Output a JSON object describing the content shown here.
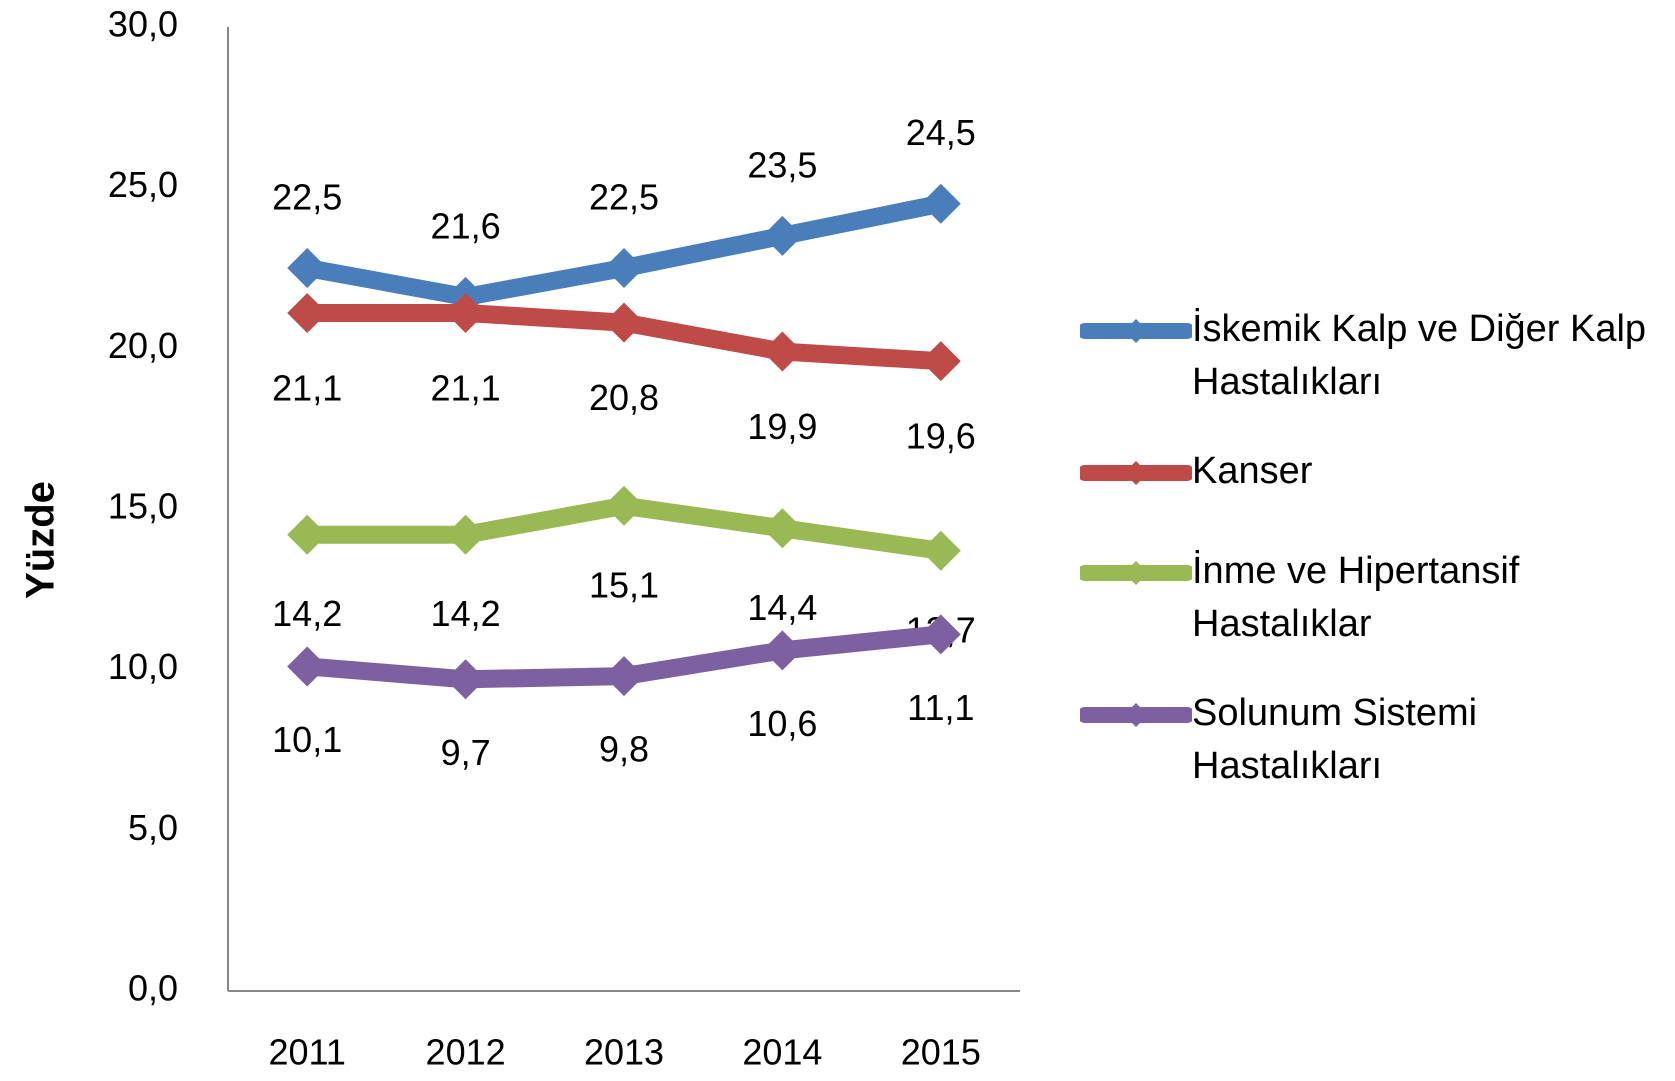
{
  "chart_data": {
    "type": "line",
    "ylabel": "Yüzde",
    "categories": [
      "2011",
      "2012",
      "2013",
      "2014",
      "2015"
    ],
    "series": [
      {
        "name": "İskemik Kalp ve Diğer Kalp Hastalıkları",
        "color": "#4a7ebb",
        "values": [
          22.5,
          21.6,
          22.5,
          23.5,
          24.5
        ],
        "value_labels": [
          "22,5",
          "21,6",
          "22,5",
          "23,5",
          "24,5"
        ]
      },
      {
        "name": "Kanser",
        "color": "#be4b48",
        "values": [
          21.1,
          21.1,
          20.8,
          19.9,
          19.6
        ],
        "value_labels": [
          "21,1",
          "21,1",
          "20,8",
          "19,9",
          "19,6"
        ]
      },
      {
        "name": "İnme ve Hipertansif Hastalıklar",
        "color": "#98b954",
        "values": [
          14.2,
          14.2,
          15.1,
          14.4,
          13.7
        ],
        "value_labels": [
          "14,2",
          "14,2",
          "15,1",
          "14,4",
          "13,7"
        ]
      },
      {
        "name": "Solunum Sistemi Hastalıkları",
        "color": "#7d60a0",
        "values": [
          10.1,
          9.7,
          9.8,
          10.6,
          11.1
        ],
        "value_labels": [
          "10,1",
          "9,7",
          "9,8",
          "10,6",
          "11,1"
        ]
      }
    ],
    "ylim": [
      0,
      30
    ],
    "yticks": [
      {
        "value": 0,
        "label": "0,0"
      },
      {
        "value": 5,
        "label": "5,0"
      },
      {
        "value": 10,
        "label": "10,0"
      },
      {
        "value": 15,
        "label": "15,0"
      },
      {
        "value": 20,
        "label": "20,0"
      },
      {
        "value": 25,
        "label": "25,0"
      },
      {
        "value": 30,
        "label": "30,0"
      }
    ],
    "grid": false,
    "legend": "right"
  }
}
